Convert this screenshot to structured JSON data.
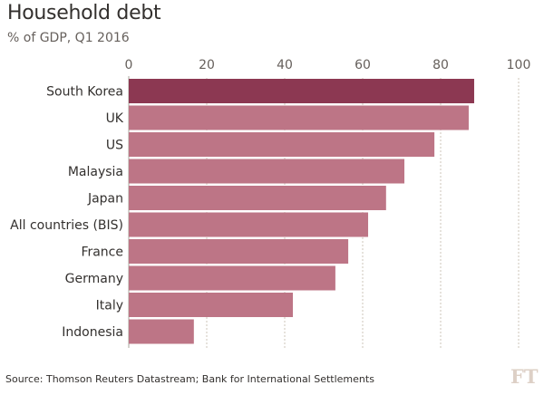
{
  "chart_data": {
    "type": "bar",
    "orientation": "horizontal",
    "title": "Household debt",
    "subtitle": "% of GDP, Q1 2016",
    "xlabel": "",
    "ylabel": "",
    "xlim": [
      0,
      100
    ],
    "ticks": [
      "0",
      "20",
      "40",
      "60",
      "80",
      "100"
    ],
    "tick_values": [
      0,
      20,
      40,
      60,
      80,
      100
    ],
    "grid": true,
    "categories": [
      "South Korea",
      "UK",
      "US",
      "Malaysia",
      "Japan",
      "All countries (BIS)",
      "France",
      "Germany",
      "Italy",
      "Indonesia"
    ],
    "values": [
      88.6,
      87.2,
      78.4,
      70.7,
      66.0,
      61.4,
      56.3,
      53.0,
      42.1,
      16.7
    ],
    "highlight_index": 0,
    "colors": {
      "highlight": "#8c3852",
      "default": "#bd7586",
      "grid": "#cec6b9",
      "axis": "#a7a59b"
    }
  },
  "footer": {
    "source": "Source: Thomson Reuters Datastream; Bank for International Settlements",
    "logo": "FT"
  }
}
